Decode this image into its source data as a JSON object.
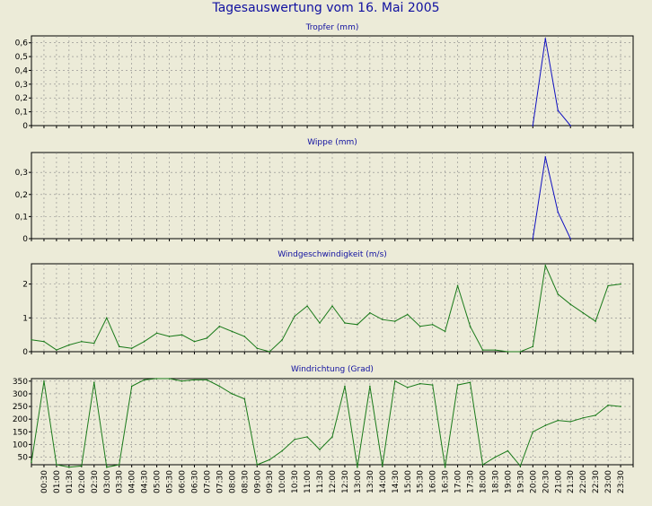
{
  "title": "Tagesauswertung vom 16. Mai 2005",
  "colors": {
    "background": "#ecebd8",
    "title": "#1010a0",
    "blue_series": "#1010c0",
    "green_series": "#1a7a1a",
    "grid": "#888888"
  },
  "x_tick_labels": [
    "00:30",
    "01:00",
    "01:30",
    "02:00",
    "02:30",
    "03:00",
    "03:30",
    "04:00",
    "04:30",
    "05:00",
    "05:30",
    "06:00",
    "06:30",
    "07:00",
    "07:30",
    "08:00",
    "08:30",
    "09:00",
    "09:30",
    "10:00",
    "10:30",
    "11:00",
    "11:30",
    "12:00",
    "12:30",
    "13:00",
    "13:30",
    "14:00",
    "14:30",
    "15:00",
    "15:30",
    "16:00",
    "16:30",
    "17:00",
    "17:30",
    "18:00",
    "18:30",
    "19:00",
    "19:30",
    "20:00",
    "20:30",
    "21:00",
    "21:30",
    "22:00",
    "22:30",
    "23:00",
    "23:30"
  ],
  "chart_data": [
    {
      "type": "line",
      "title": "Tropfer (mm)",
      "ylim": [
        0,
        0.65
      ],
      "yticks": [
        0,
        0.1,
        0.2,
        0.3,
        0.4,
        0.5,
        0.6
      ],
      "ytick_labels": [
        "0",
        "0,1",
        "0,2",
        "0,3",
        "0,4",
        "0,5",
        "0,6"
      ],
      "grid": true,
      "x": [
        "20:00",
        "20:30",
        "21:00",
        "21:30"
      ],
      "values": [
        0,
        0.63,
        0.11,
        0
      ]
    },
    {
      "type": "line",
      "title": "Wippe (mm)",
      "ylim": [
        0,
        0.39
      ],
      "yticks": [
        0,
        0.1,
        0.2,
        0.3
      ],
      "ytick_labels": [
        "0",
        "0,1",
        "0,2",
        "0,3"
      ],
      "grid": true,
      "x": [
        "20:00",
        "20:30",
        "21:00",
        "21:30"
      ],
      "values": [
        0,
        0.37,
        0.12,
        0
      ]
    },
    {
      "type": "line",
      "title": "Windgeschwindigkeit (m/s)",
      "ylim": [
        0,
        2.6
      ],
      "yticks": [
        0,
        1,
        2
      ],
      "ytick_labels": [
        "0",
        "1",
        "2"
      ],
      "grid": true,
      "x": [
        "00:00",
        "00:30",
        "01:00",
        "01:30",
        "02:00",
        "02:30",
        "03:00",
        "03:30",
        "04:00",
        "04:30",
        "05:00",
        "05:30",
        "06:00",
        "06:30",
        "07:00",
        "07:30",
        "08:00",
        "08:30",
        "09:00",
        "09:30",
        "10:00",
        "10:30",
        "11:00",
        "11:30",
        "12:00",
        "12:30",
        "13:00",
        "13:30",
        "14:00",
        "14:30",
        "15:00",
        "15:30",
        "16:00",
        "16:30",
        "17:00",
        "17:30",
        "18:00",
        "18:30",
        "19:00",
        "19:30",
        "20:00",
        "20:30",
        "21:00",
        "21:30",
        "22:00",
        "22:30",
        "23:00",
        "23:30"
      ],
      "values": [
        0.35,
        0.3,
        0.05,
        0.2,
        0.3,
        0.25,
        1.0,
        0.15,
        0.1,
        0.3,
        0.55,
        0.45,
        0.5,
        0.3,
        0.4,
        0.75,
        0.6,
        0.45,
        0.1,
        0.0,
        0.35,
        1.05,
        1.35,
        0.85,
        1.35,
        0.85,
        0.8,
        1.15,
        0.95,
        0.9,
        1.1,
        0.75,
        0.8,
        0.6,
        1.95,
        0.75,
        0.05,
        0.05,
        0.0,
        0.0,
        0.15,
        2.55,
        1.7,
        1.4,
        1.15,
        0.9,
        1.95,
        2.0
      ]
    },
    {
      "type": "line",
      "title": "Windrichtung (Grad)",
      "ylim": [
        20,
        360
      ],
      "yticks": [
        50,
        100,
        150,
        200,
        250,
        300,
        350
      ],
      "ytick_labels": [
        "50",
        "100",
        "150",
        "200",
        "250",
        "300",
        "350"
      ],
      "grid": true,
      "x": [
        "00:00",
        "00:30",
        "01:00",
        "01:30",
        "02:00",
        "02:30",
        "03:00",
        "03:30",
        "04:00",
        "04:30",
        "05:00",
        "05:30",
        "06:00",
        "06:30",
        "07:00",
        "07:30",
        "08:00",
        "08:30",
        "09:00",
        "09:30",
        "10:00",
        "10:30",
        "11:00",
        "11:30",
        "12:00",
        "12:30",
        "13:00",
        "13:30",
        "14:00",
        "14:30",
        "15:00",
        "15:30",
        "16:00",
        "16:30",
        "17:00",
        "17:30",
        "18:00",
        "18:30",
        "19:00",
        "19:30",
        "20:00",
        "20:30",
        "21:00",
        "21:30",
        "22:00",
        "22:30",
        "23:00",
        "23:30"
      ],
      "values": [
        30,
        350,
        20,
        10,
        15,
        345,
        10,
        20,
        330,
        355,
        360,
        360,
        350,
        355,
        355,
        330,
        300,
        280,
        20,
        40,
        75,
        120,
        130,
        80,
        130,
        330,
        10,
        330,
        15,
        350,
        325,
        340,
        335,
        10,
        335,
        345,
        20,
        50,
        75,
        15,
        150,
        175,
        195,
        190,
        205,
        215,
        255,
        250
      ]
    }
  ]
}
